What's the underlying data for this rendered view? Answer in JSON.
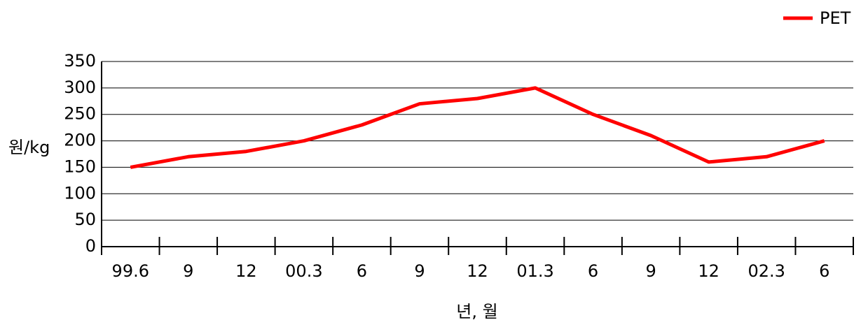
{
  "chart_data": {
    "type": "line",
    "categories": [
      "99.6",
      "9",
      "12",
      "00.3",
      "6",
      "9",
      "12",
      "01.3",
      "6",
      "9",
      "12",
      "02.3",
      "6"
    ],
    "series": [
      {
        "name": "PET",
        "color": "#ff0000",
        "values": [
          150,
          170,
          180,
          200,
          230,
          270,
          280,
          300,
          250,
          210,
          160,
          170,
          200
        ]
      }
    ],
    "ylim": [
      0,
      350
    ],
    "yticks": [
      0,
      50,
      100,
      150,
      200,
      250,
      300,
      350
    ],
    "ylabel": "원/kg",
    "xlabel": "년, 월",
    "grid": true,
    "legend": "top-right"
  }
}
